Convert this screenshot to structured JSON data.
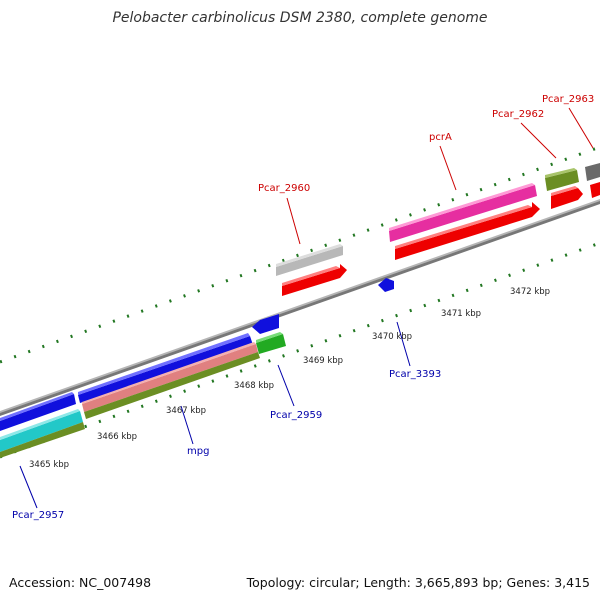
{
  "title": "Pelobacter carbinolicus DSM 2380, complete genome",
  "footer": {
    "accession": "Accession: NC_007498",
    "summary": "Topology: circular; Length: 3,665,893 bp; Genes: 3,415"
  },
  "ticks": [
    {
      "label": "3465 kbp"
    },
    {
      "label": "3466 kbp"
    },
    {
      "label": "3467 kbp"
    },
    {
      "label": "3468 kbp"
    },
    {
      "label": "3469 kbp"
    },
    {
      "label": "3470 kbp"
    },
    {
      "label": "3471 kbp"
    },
    {
      "label": "3472 kbp"
    }
  ],
  "gene_labels": [
    {
      "name": "Pcar_2960",
      "strand": "forward"
    },
    {
      "name": "pcrA",
      "strand": "forward"
    },
    {
      "name": "Pcar_2962",
      "strand": "forward"
    },
    {
      "name": "Pcar_2963",
      "strand": "forward"
    },
    {
      "name": "Pcar_3393",
      "strand": "reverse"
    },
    {
      "name": "Pcar_2959",
      "strand": "reverse"
    },
    {
      "name": "mpg",
      "strand": "reverse"
    },
    {
      "name": "Pcar_2957",
      "strand": "reverse"
    }
  ],
  "colors": {
    "forward_label": "#cc0000",
    "reverse_label": "#0000aa",
    "backbone": "#888888",
    "tick": "#227722"
  }
}
